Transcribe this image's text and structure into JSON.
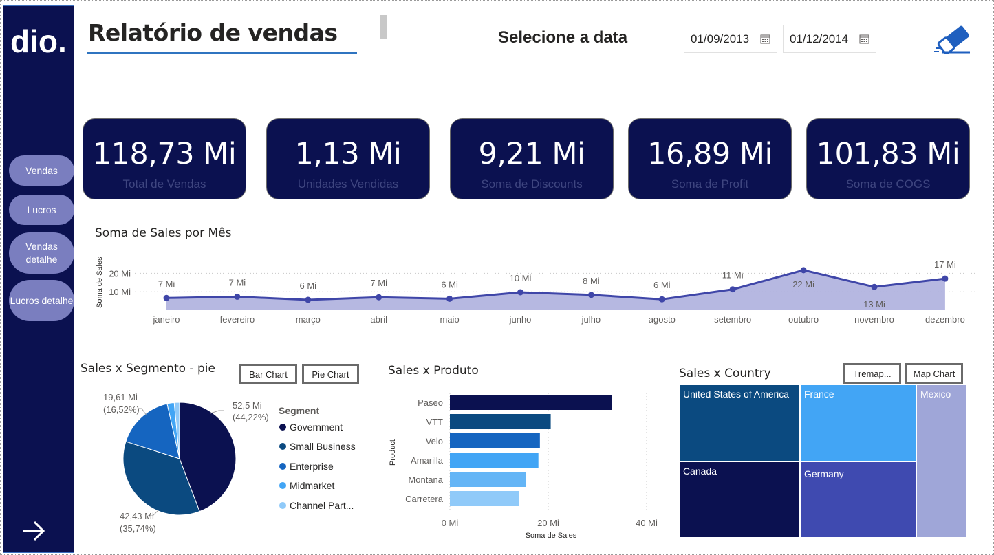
{
  "nav": {
    "logo_text": "dio.",
    "items": [
      {
        "label": "Vendas"
      },
      {
        "label": "Lucros"
      },
      {
        "label": "Vendas detalhe"
      },
      {
        "label": "Lucros detalhe"
      }
    ]
  },
  "header": {
    "title": "Relatório de vendas",
    "date_label": "Selecione a data",
    "date_start": "01/09/2013",
    "date_end": "01/12/2014"
  },
  "kpis": [
    {
      "value": "118,73 Mi",
      "label": "Total de Vendas"
    },
    {
      "value": "1,13 Mi",
      "label": "Unidades Vendidas"
    },
    {
      "value": "9,21 Mi",
      "label": "Soma de Discounts"
    },
    {
      "value": "16,89 Mi",
      "label": "Soma de Profit"
    },
    {
      "value": "101,83 Mi",
      "label": "Soma de COGS"
    }
  ],
  "colors": {
    "navy": "#0b1150",
    "nav_button": "#7a7ebf",
    "line": "#3f46a8",
    "area": "#a9acdc",
    "segments": [
      "#0b1150",
      "#0b4a80",
      "#1565c0",
      "#42a5f5",
      "#90caf9"
    ],
    "products": [
      "#0b1150",
      "#0b4a80",
      "#1565c0",
      "#42a5f5",
      "#64b5f6",
      "#90caf9"
    ],
    "treemap": [
      "#0b4a80",
      "#42a5f5",
      "#9fa6d8",
      "#0b1150",
      "#3f4ab0"
    ]
  },
  "chart_data": [
    {
      "type": "area",
      "title": "Soma de Sales por Mês",
      "ylabel": "Soma de Sales",
      "yticks": [
        "10 Mi",
        "20 Mi"
      ],
      "ylim": [
        0,
        25
      ],
      "categories": [
        "janeiro",
        "fevereiro",
        "março",
        "abril",
        "maio",
        "junho",
        "julho",
        "agosto",
        "setembro",
        "outubro",
        "novembro",
        "dezembro"
      ],
      "values": [
        6.6,
        7.3,
        5.6,
        7.0,
        6.2,
        9.7,
        8.3,
        5.9,
        11.3,
        21.7,
        12.6,
        17.1
      ],
      "data_labels": [
        "7 Mi",
        "7 Mi",
        "6 Mi",
        "7 Mi",
        "6 Mi",
        "10 Mi",
        "8 Mi",
        "6 Mi",
        "11 Mi",
        "22 Mi",
        "13 Mi",
        "17 Mi"
      ]
    },
    {
      "type": "pie",
      "title": "Sales x Segmento - pie",
      "legend_title": "Segment",
      "categories": [
        "Government",
        "Small Business",
        "Enterprise",
        "Midmarket",
        "Channel Part..."
      ],
      "values": [
        52.5,
        42.43,
        19.61,
        2.4,
        1.8
      ],
      "data_labels": [
        {
          "value": "52,5 Mi",
          "pct": "(44,22%)"
        },
        {
          "value": "42,43 Mi",
          "pct": "(35,74%)"
        },
        {
          "value": "19,61 Mi",
          "pct": "(16,52%)"
        }
      ],
      "buttons": [
        "Bar Chart",
        "Pie Chart"
      ]
    },
    {
      "type": "bar",
      "title": "Sales x Produto",
      "ylabel": "Product",
      "xlabel": "Soma de Sales",
      "xticks": [
        "0 Mi",
        "20 Mi",
        "40 Mi"
      ],
      "xlim": [
        0,
        40
      ],
      "categories": [
        "Paseo",
        "VTT",
        "Velo",
        "Amarilla",
        "Montana",
        "Carretera"
      ],
      "values": [
        33.0,
        20.5,
        18.3,
        18.0,
        15.4,
        14.0
      ]
    },
    {
      "type": "treemap",
      "title": "Sales x Country",
      "buttons": [
        "Tremap...",
        "Map Chart"
      ],
      "categories": [
        "United States of America",
        "France",
        "Mexico",
        "Canada",
        "Germany"
      ]
    }
  ]
}
